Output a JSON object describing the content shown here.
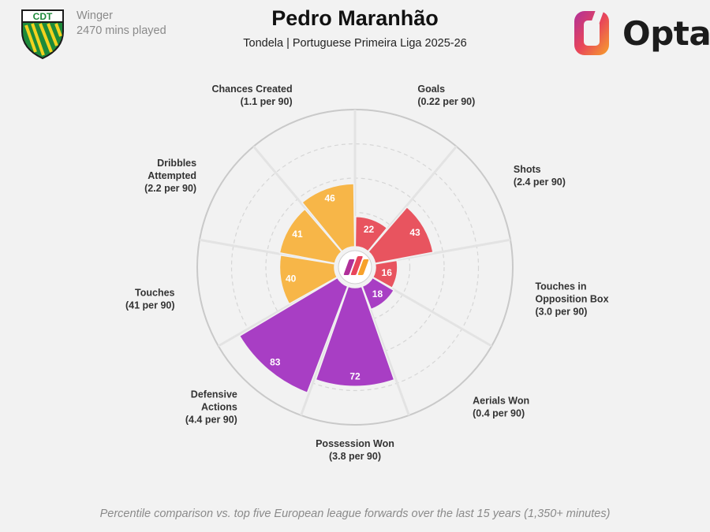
{
  "header": {
    "player_name": "Pedro Maranhão",
    "subtitle": "Tondela | Portuguese Primeira Liga 2025-26",
    "position": "Winger",
    "minutes": "2470 mins played",
    "crest_text": "CDT",
    "brand": "Opta"
  },
  "footnote": "Percentile comparison vs. top five European league forwards over the last 15 years (1,350+ minutes)",
  "colors": {
    "attacking": "#e8545f",
    "physical": "#a83ec4",
    "possession": "#f7b648",
    "background": "#f2f2f2"
  },
  "chart_data": {
    "type": "polar-bar",
    "scale_max": 100,
    "metrics": [
      {
        "name": [
          "Goals"
        ],
        "rate": "(0.22 per 90)",
        "value": 22,
        "group": "attacking"
      },
      {
        "name": [
          "Shots"
        ],
        "rate": "(2.4 per 90)",
        "value": 43,
        "group": "attacking"
      },
      {
        "name": [
          "Touches in",
          "Opposition Box"
        ],
        "rate": "(3.0 per 90)",
        "value": 16,
        "group": "attacking"
      },
      {
        "name": [
          "Aerials Won"
        ],
        "rate": "(0.4 per 90)",
        "value": 18,
        "group": "physical"
      },
      {
        "name": [
          "Possession Won"
        ],
        "rate": "(3.8 per 90)",
        "value": 72,
        "group": "physical"
      },
      {
        "name": [
          "Defensive",
          "Actions"
        ],
        "rate": "(4.4 per 90)",
        "value": 83,
        "group": "physical"
      },
      {
        "name": [
          "Touches"
        ],
        "rate": "(41 per 90)",
        "value": 40,
        "group": "possession"
      },
      {
        "name": [
          "Dribbles",
          "Attempted"
        ],
        "rate": "(2.2 per 90)",
        "value": 41,
        "group": "possession"
      },
      {
        "name": [
          "Chances Created"
        ],
        "rate": "(1.1 per 90)",
        "value": 46,
        "group": "possession"
      }
    ]
  }
}
